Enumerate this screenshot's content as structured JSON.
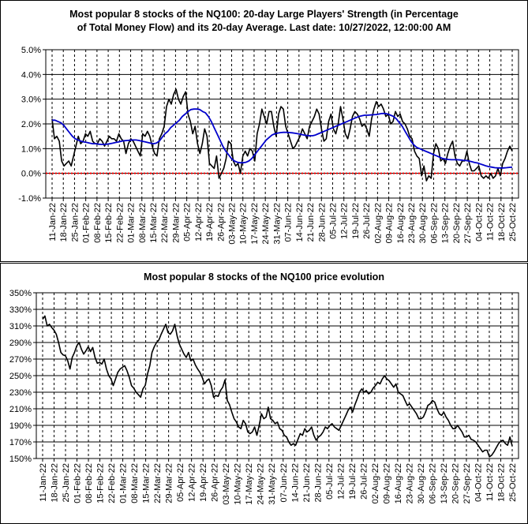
{
  "chart_data": [
    {
      "type": "line",
      "title_line1": "Most popular 8 stocks of the NQ100: 20-day Large Players' Strength (in Percentage",
      "title_line2": "of Total Money Flow) and its 20-day Average. Last date: 10/27/2022, 12:00:00 AM",
      "ylim": [
        -1.0,
        5.0
      ],
      "y_ticks": [
        "5.0%",
        "4.0%",
        "3.0%",
        "2.0%",
        "1.0%",
        "0.0%",
        "-1.0%"
      ],
      "y_tick_values": [
        5,
        4,
        3,
        2,
        1,
        0,
        -1
      ],
      "x_ticks": [
        "11-Jan-22",
        "18-Jan-22",
        "25-Jan-22",
        "01-Feb-22",
        "08-Feb-22",
        "15-Feb-22",
        "22-Feb-22",
        "01-Mar-22",
        "08-Mar-22",
        "15-Mar-22",
        "22-Mar-22",
        "29-Mar-22",
        "05-Apr-22",
        "12-Apr-22",
        "19-Apr-22",
        "26-Apr-22",
        "03-May-22",
        "10-May-22",
        "17-May-22",
        "24-May-22",
        "31-May-22",
        "07-Jun-22",
        "14-Jun-22",
        "21-Jun-22",
        "28-Jun-22",
        "05-Jul-22",
        "12-Jul-22",
        "19-Jul-22",
        "26-Jul-22",
        "02-Aug-22",
        "09-Aug-22",
        "16-Aug-22",
        "23-Aug-22",
        "30-Aug-22",
        "06-Sep-22",
        "13-Sep-22",
        "20-Sep-22",
        "27-Sep-22",
        "04-Oct-22",
        "11-Oct-22",
        "18-Oct-22",
        "25-Oct-22"
      ],
      "zero_line_color": "#ff0000",
      "series": [
        {
          "color": "#000000",
          "values": [
            2.2,
            1.4,
            1.5,
            1.3,
            0.5,
            0.3,
            0.4,
            0.5,
            0.3,
            0.7,
            1.1,
            1.5,
            1.2,
            1.3,
            1.6,
            1.5,
            1.7,
            1.3,
            1.2,
            1.2,
            1.4,
            1.3,
            1.1,
            1.3,
            1.5,
            1.4,
            1.4,
            1.3,
            1.6,
            1.4,
            1.3,
            0.8,
            1.2,
            1.4,
            1.3,
            1.1,
            0.9,
            0.7,
            1.6,
            1.5,
            1.7,
            1.5,
            1.1,
            0.8,
            0.7,
            1.4,
            1.6,
            1.9,
            2.7,
            3.0,
            2.8,
            3.2,
            3.4,
            3.0,
            2.8,
            3.1,
            3.3,
            2.4,
            2.1,
            1.6,
            1.9,
            1.2,
            0.8,
            1.2,
            1.8,
            1.5,
            0.4,
            0.3,
            0.2,
            0.7,
            -0.2,
            0.0,
            0.2,
            0.6,
            1.3,
            1.2,
            0.5,
            0.3,
            0.4,
            0.0,
            0.7,
            0.9,
            0.7,
            1.0,
            0.9,
            0.5,
            1.6,
            2.0,
            2.6,
            2.3,
            2.0,
            2.5,
            2.5,
            1.9,
            1.5,
            2.4,
            2.7,
            2.6,
            1.9,
            1.6,
            1.3,
            1.0,
            1.1,
            1.3,
            1.5,
            1.8,
            1.6,
            1.4,
            1.9,
            2.1,
            2.3,
            2.6,
            2.4,
            1.8,
            1.3,
            1.4,
            2.1,
            2.4,
            1.8,
            1.6,
            2.0,
            2.7,
            2.2,
            1.6,
            1.4,
            1.8,
            2.3,
            2.5,
            2.4,
            2.2,
            1.9,
            2.0,
            1.8,
            1.5,
            2.2,
            2.6,
            2.9,
            2.7,
            2.8,
            2.6,
            2.3,
            2.4,
            2.0,
            2.1,
            2.5,
            2.3,
            2.4,
            2.1,
            2.0,
            1.8,
            1.5,
            1.4,
            0.9,
            0.7,
            0.6,
            -0.1,
            0.3,
            -0.3,
            -0.1,
            -0.2,
            0.8,
            1.2,
            1.0,
            0.5,
            0.6,
            0.4,
            0.8,
            1.1,
            1.3,
            0.7,
            0.4,
            0.3,
            0.5,
            0.5,
            0.9,
            0.4,
            0.1,
            0.1,
            0.2,
            0.3,
            -0.1,
            -0.2,
            -0.1,
            -0.2,
            0.0,
            -0.2,
            -0.1,
            0.2,
            -0.1,
            0.4,
            0.6,
            0.9,
            1.1,
            0.9
          ]
        },
        {
          "color": "#0000cc",
          "values": [
            2.15,
            2.15,
            2.1,
            2.05,
            1.95,
            1.8,
            1.65,
            1.5,
            1.4,
            1.35,
            1.3,
            1.27,
            1.25,
            1.22,
            1.2,
            1.2,
            1.18,
            1.17,
            1.17,
            1.18,
            1.2,
            1.22,
            1.25,
            1.27,
            1.3,
            1.32,
            1.33,
            1.34,
            1.35,
            1.35,
            1.33,
            1.3,
            1.28,
            1.25,
            1.22,
            1.2,
            1.22,
            1.3,
            1.45,
            1.6,
            1.7,
            1.85,
            1.95,
            2.05,
            2.15,
            2.3,
            2.4,
            2.5,
            2.58,
            2.6,
            2.6,
            2.58,
            2.5,
            2.45,
            2.3,
            2.1,
            1.85,
            1.6,
            1.35,
            1.1,
            0.9,
            0.75,
            0.6,
            0.5,
            0.45,
            0.43,
            0.43,
            0.45,
            0.5,
            0.6,
            0.75,
            0.9,
            1.05,
            1.2,
            1.35,
            1.45,
            1.55,
            1.6,
            1.63,
            1.65,
            1.66,
            1.66,
            1.65,
            1.64,
            1.62,
            1.6,
            1.58,
            1.55,
            1.53,
            1.52,
            1.52,
            1.55,
            1.6,
            1.65,
            1.7,
            1.75,
            1.8,
            1.85,
            1.9,
            1.95,
            2.0,
            2.05,
            2.1,
            2.15,
            2.2,
            2.25,
            2.3,
            2.33,
            2.35,
            2.35,
            2.36,
            2.37,
            2.38,
            2.4,
            2.42,
            2.42,
            2.4,
            2.35,
            2.3,
            2.2,
            2.05,
            1.9,
            1.7,
            1.5,
            1.3,
            1.15,
            1.05,
            1.0,
            0.95,
            0.9,
            0.85,
            0.8,
            0.75,
            0.7,
            0.65,
            0.6,
            0.58,
            0.56,
            0.55,
            0.55,
            0.55,
            0.54,
            0.53,
            0.52,
            0.5,
            0.47,
            0.44,
            0.42,
            0.38,
            0.34,
            0.3,
            0.27,
            0.25,
            0.23,
            0.22,
            0.22,
            0.22,
            0.23,
            0.24,
            0.25
          ]
        }
      ]
    },
    {
      "type": "line",
      "title": "Most popular 8 stocks of the NQ100 price evolution",
      "ylim": [
        150,
        350
      ],
      "y_ticks": [
        "350%",
        "330%",
        "310%",
        "290%",
        "270%",
        "250%",
        "230%",
        "210%",
        "190%",
        "170%",
        "150%"
      ],
      "y_tick_values": [
        350,
        330,
        310,
        290,
        270,
        250,
        230,
        210,
        190,
        170,
        150
      ],
      "x_ticks": [
        "11-Jan-22",
        "18-Jan-22",
        "25-Jan-22",
        "01-Feb-22",
        "08-Feb-22",
        "15-Feb-22",
        "22-Feb-22",
        "01-Mar-22",
        "08-Mar-22",
        "15-Mar-22",
        "22-Mar-22",
        "29-Mar-22",
        "05-Apr-22",
        "12-Apr-22",
        "19-Apr-22",
        "26-Apr-22",
        "03-May-22",
        "10-May-22",
        "17-May-22",
        "24-May-22",
        "31-May-22",
        "07-Jun-22",
        "14-Jun-22",
        "21-Jun-22",
        "28-Jun-22",
        "05-Jul-22",
        "12-Jul-22",
        "19-Jul-22",
        "26-Jul-22",
        "02-Aug-22",
        "09-Aug-22",
        "16-Aug-22",
        "23-Aug-22",
        "30-Aug-22",
        "06-Sep-22",
        "13-Sep-22",
        "20-Sep-22",
        "27-Sep-22",
        "04-Oct-22",
        "11-Oct-22",
        "18-Oct-22",
        "25-Oct-22"
      ],
      "series": [
        {
          "color": "#000000",
          "values": [
            318,
            322,
            310,
            312,
            308,
            305,
            300,
            290,
            278,
            275,
            274,
            268,
            258,
            272,
            278,
            286,
            290,
            282,
            276,
            280,
            285,
            279,
            284,
            272,
            265,
            266,
            264,
            270,
            258,
            250,
            246,
            238,
            246,
            254,
            258,
            260,
            262,
            256,
            248,
            238,
            235,
            230,
            227,
            224,
            234,
            238,
            252,
            262,
            278,
            285,
            290,
            293,
            300,
            306,
            312,
            302,
            300,
            304,
            312,
            298,
            288,
            282,
            276,
            272,
            278,
            268,
            270,
            263,
            258,
            254,
            248,
            240,
            244,
            246,
            238,
            224,
            226,
            225,
            232,
            236,
            245,
            220,
            215,
            206,
            198,
            194,
            188,
            186,
            196,
            192,
            182,
            180,
            182,
            188,
            178,
            190,
            204,
            198,
            200,
            212,
            198,
            196,
            192,
            194,
            186,
            184,
            178,
            176,
            170,
            166,
            168,
            166,
            173,
            180,
            178,
            186,
            182,
            184,
            188,
            178,
            172,
            176,
            178,
            182,
            188,
            186,
            190,
            192,
            188,
            186,
            184,
            190,
            196,
            202,
            208,
            212,
            206,
            215,
            222,
            230,
            234,
            230,
            232,
            228,
            230,
            235,
            238,
            242,
            240,
            246,
            250,
            246,
            244,
            240,
            236,
            240,
            230,
            228,
            226,
            220,
            214,
            216,
            212,
            208,
            204,
            198,
            198,
            200,
            206,
            214,
            216,
            220,
            218,
            210,
            204,
            202,
            206,
            200,
            196,
            190,
            186,
            186,
            190,
            186,
            182,
            176,
            176,
            178,
            173,
            172,
            170,
            166,
            162,
            158,
            160,
            160,
            152,
            154,
            158,
            163,
            168,
            171,
            172,
            168,
            166,
            176,
            165
          ]
        }
      ]
    }
  ]
}
